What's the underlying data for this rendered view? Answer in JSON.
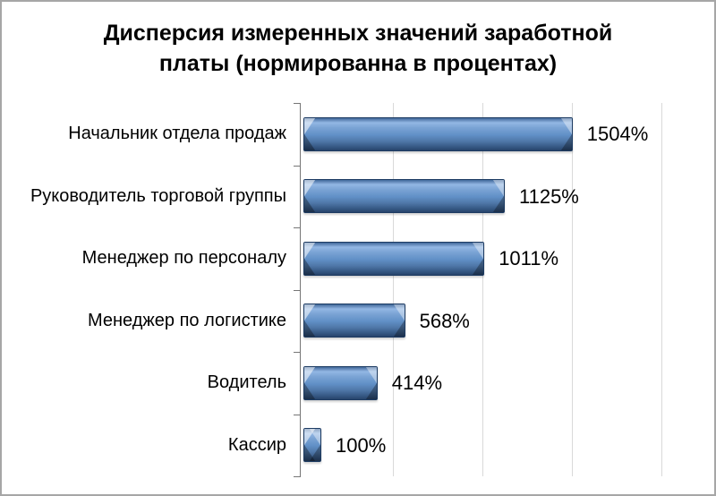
{
  "frame": {
    "border_color": "#a6a6a6",
    "background": "#ffffff"
  },
  "chart_data": {
    "type": "bar",
    "orientation": "horizontal",
    "title": "Дисперсия измеренных значений заработной платы (нормированна в процентах)",
    "categories": [
      "Начальник отдела продаж",
      "Руководитель торговой группы",
      "Менеджер по персоналу",
      "Менеджер по логистике",
      "Водитель",
      "Кассир"
    ],
    "values": [
      1504,
      1125,
      1011,
      568,
      414,
      100
    ],
    "unit": "%",
    "data_labels": [
      "1504%",
      "1125%",
      "1011%",
      "568%",
      "414%",
      "100%"
    ],
    "xlabel": "",
    "ylabel": "",
    "xlim": [
      0,
      2250
    ],
    "gridlines_pct": [
      500,
      1000,
      1500,
      2000
    ],
    "grid": true,
    "legend": false,
    "colors": {
      "bar_fill_light": "#93b7e4",
      "bar_fill_mid": "#6190c7",
      "bar_fill_dark": "#2f4f79",
      "bar_border": "#1e3c63",
      "gridline": "#d9d9d9",
      "axis": "#767676",
      "text": "#000000",
      "frame_border": "#a6a6a6"
    }
  }
}
